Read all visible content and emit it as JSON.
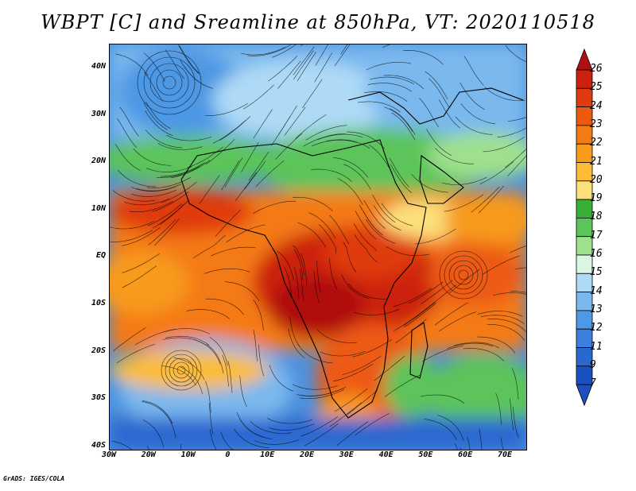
{
  "title": "WBPT [C] and Sreamline at 850hPa, VT: 2020110518",
  "footer": "GrADS: IGES/COLA",
  "lat_labels": [
    "40N",
    "30N",
    "20N",
    "10N",
    "EQ",
    "10S",
    "20S",
    "30S",
    "40S"
  ],
  "lon_labels": [
    "30W",
    "20W",
    "10W",
    "0",
    "10E",
    "20E",
    "30E",
    "40E",
    "50E",
    "60E",
    "70E"
  ],
  "colorbar": {
    "labels": [
      "26",
      "25",
      "24",
      "23",
      "22",
      "21",
      "20",
      "19",
      "18",
      "17",
      "16",
      "15",
      "14",
      "13",
      "12",
      "11",
      "9",
      "7"
    ],
    "colors": [
      "#b01010",
      "#cc2010",
      "#e03a10",
      "#ec5a12",
      "#f47a14",
      "#f89a1c",
      "#fcbc38",
      "#fce07a",
      "#38b038",
      "#5cc45a",
      "#9ee08e",
      "#dcf6e6",
      "#aedaf6",
      "#7ab8ee",
      "#4e98e4",
      "#3a80dc",
      "#2a68d0",
      "#1a50c0"
    ]
  },
  "map": {
    "lon_range": [
      -30,
      75
    ],
    "lat_range": [
      -40,
      45
    ]
  }
}
